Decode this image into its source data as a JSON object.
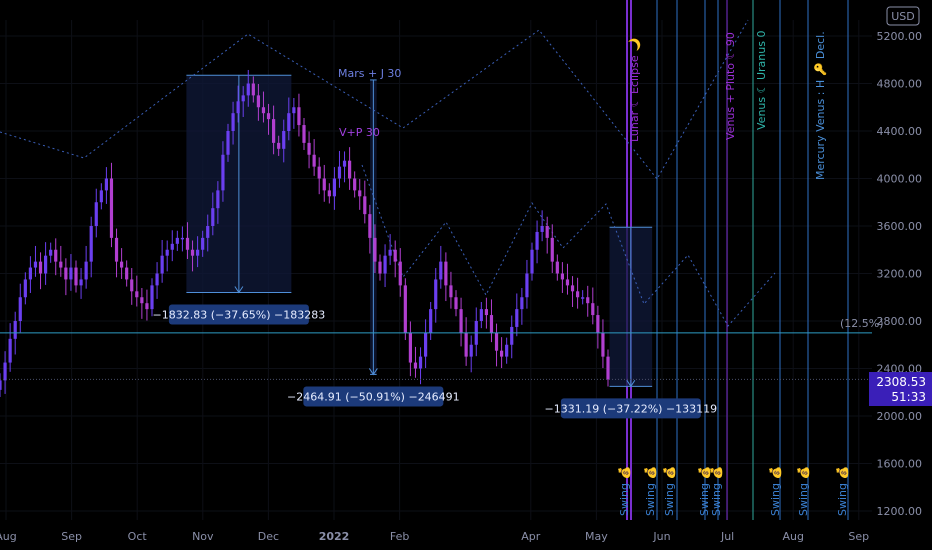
{
  "chart_data": {
    "type": "candlestick",
    "symbol_currency": "USD",
    "y_ticks": [
      "5200.00",
      "4800.00",
      "4400.00",
      "4000.00",
      "3600.00",
      "3200.00",
      "2800.00",
      "2400.00",
      "2000.00",
      "1600.00",
      "1200.00"
    ],
    "y_tick_values": [
      5200,
      4800,
      4400,
      4000,
      3600,
      3200,
      2800,
      2400,
      2000,
      1600,
      1200
    ],
    "ylim": [
      1120,
      5560
    ],
    "x_ticks": [
      "Aug",
      "Sep",
      "Oct",
      "Nov",
      "Dec",
      "2022",
      "Feb",
      "Apr",
      "May",
      "Jun",
      "Jul",
      "Aug",
      "Sep"
    ],
    "x_tick_months": [
      0,
      1,
      2,
      3,
      4,
      5,
      6,
      8,
      9,
      10,
      11,
      12,
      13
    ],
    "last_price": "2308.53",
    "countdown": "51:33",
    "fib_label": "(12.5%)",
    "fib_level": 2700,
    "price_line_level": 2308,
    "closes": [
      2300,
      2450,
      2650,
      2800,
      3000,
      3150,
      3250,
      3300,
      3200,
      3350,
      3400,
      3300,
      3250,
      3150,
      3250,
      3100,
      3150,
      3300,
      3600,
      3800,
      3900,
      4000,
      3500,
      3300,
      3250,
      3150,
      3050,
      3000,
      2950,
      2900,
      3100,
      3200,
      3350,
      3400,
      3450,
      3500,
      3500,
      3400,
      3350,
      3400,
      3500,
      3600,
      3750,
      3900,
      4200,
      4400,
      4550,
      4650,
      4700,
      4800,
      4700,
      4600,
      4550,
      4500,
      4300,
      4250,
      4400,
      4550,
      4600,
      4450,
      4300,
      4200,
      4100,
      4000,
      3900,
      3850,
      4000,
      4100,
      4150,
      4000,
      3900,
      3850,
      3700,
      3500,
      3300,
      3200,
      3350,
      3400,
      3300,
      3100,
      2700,
      2450,
      2400,
      2500,
      2700,
      2900,
      3150,
      3300,
      3100,
      3000,
      2900,
      2700,
      2500,
      2600,
      2800,
      2900,
      2850,
      2700,
      2550,
      2500,
      2600,
      2750,
      2900,
      3000,
      3200,
      3400,
      3550,
      3600,
      3500,
      3300,
      3200,
      3150,
      3100,
      3050,
      3000,
      3000,
      2950,
      2850,
      2700,
      2500,
      2308
    ],
    "boxes": [
      {
        "label": "−1832.83 (−37.65%) −183283",
        "x1": 2.75,
        "x2": 4.35,
        "p_top": 4870,
        "p_bot": 3040
      },
      {
        "label": "−2464.91 (−50.91%) −246491",
        "x1": 5.55,
        "x2": 5.65,
        "p_top": 4830,
        "p_bot": 2350
      },
      {
        "label": "−1331.19 (−37.22%) −133119",
        "x1": 9.2,
        "x2": 9.85,
        "p_top": 3590,
        "p_bot": 2250
      }
    ],
    "annotations": [
      "Mars + J 30",
      "V+P 30"
    ],
    "vertical_labels": [
      {
        "text": "Lunar ☾ Eclipse 🌙",
        "color": "#9b2fd6"
      },
      {
        "text": "Venus + Pluto ☾ 90",
        "color": "#9b2fd6"
      },
      {
        "text": "Venus ☾ Uranus 0",
        "color": "#2fb3a8"
      },
      {
        "text": "Mercury Venus : H 🔑 Decl.",
        "color": "#4a8fd8"
      }
    ],
    "swing_label": "Swing 💰"
  }
}
